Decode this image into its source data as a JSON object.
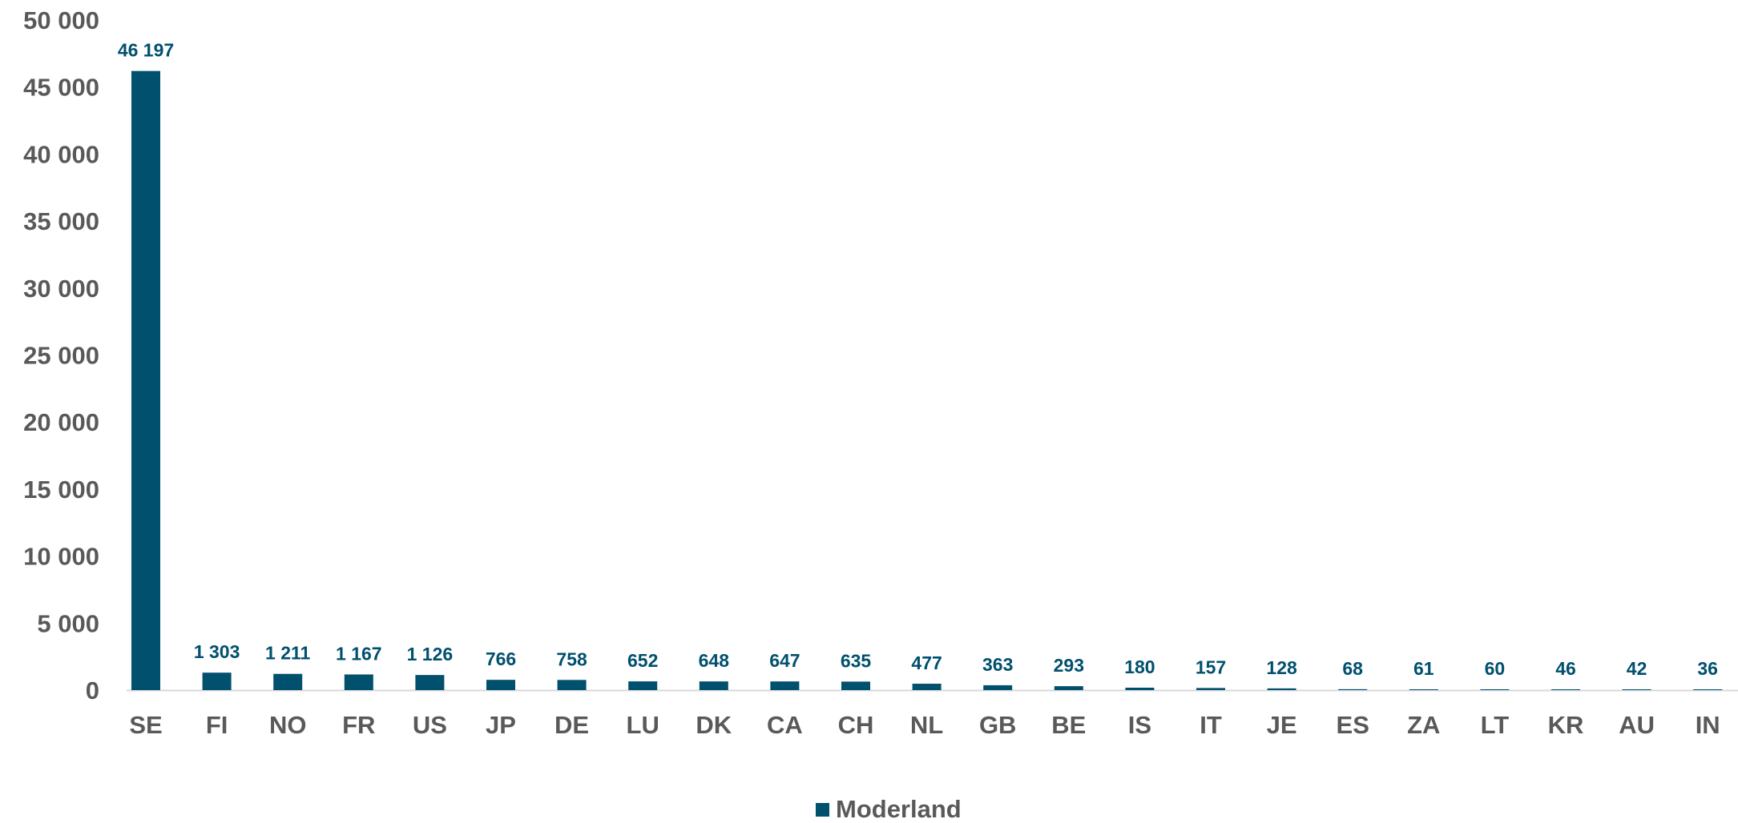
{
  "chart_data": {
    "type": "bar",
    "categories": [
      "SE",
      "FI",
      "NO",
      "FR",
      "US",
      "JP",
      "DE",
      "LU",
      "DK",
      "CA",
      "CH",
      "NL",
      "GB",
      "BE",
      "IS",
      "IT",
      "JE",
      "ES",
      "ZA",
      "LT",
      "KR",
      "AU",
      "IN"
    ],
    "series": [
      {
        "name": "Moderland",
        "values": [
          46197,
          1303,
          1211,
          1167,
          1126,
          766,
          758,
          652,
          648,
          647,
          635,
          477,
          363,
          293,
          180,
          157,
          128,
          68,
          61,
          60,
          46,
          42,
          36
        ],
        "labels": [
          "46 197",
          "1 303",
          "1 211",
          "1 167",
          "1 126",
          "766",
          "758",
          "652",
          "648",
          "647",
          "635",
          "477",
          "363",
          "293",
          "180",
          "157",
          "128",
          "68",
          "61",
          "60",
          "46",
          "42",
          "36"
        ]
      }
    ],
    "ylim": [
      0,
      50000
    ],
    "yticks": [
      0,
      5000,
      10000,
      15000,
      20000,
      25000,
      30000,
      35000,
      40000,
      45000,
      50000
    ],
    "ytick_labels": [
      "0",
      "5 000",
      "10 000",
      "15 000",
      "20 000",
      "25 000",
      "30 000",
      "35 000",
      "40 000",
      "45 000",
      "50 000"
    ],
    "title": "",
    "xlabel": "",
    "ylabel": "",
    "grid": false,
    "legend_position": "bottom",
    "colors": {
      "bar": "#00506E",
      "label": "#00506E",
      "axis_text": "#595959",
      "axis_line": "#D9D9D9"
    }
  }
}
